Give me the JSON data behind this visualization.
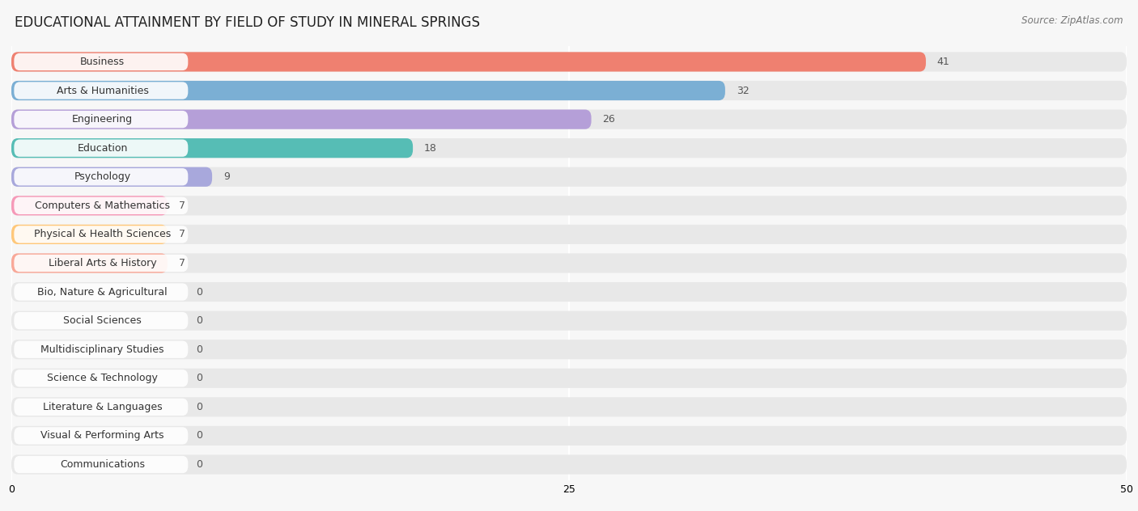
{
  "title": "EDUCATIONAL ATTAINMENT BY FIELD OF STUDY IN MINERAL SPRINGS",
  "source": "Source: ZipAtlas.com",
  "categories": [
    "Business",
    "Arts & Humanities",
    "Engineering",
    "Education",
    "Psychology",
    "Computers & Mathematics",
    "Physical & Health Sciences",
    "Liberal Arts & History",
    "Bio, Nature & Agricultural",
    "Social Sciences",
    "Multidisciplinary Studies",
    "Science & Technology",
    "Literature & Languages",
    "Visual & Performing Arts",
    "Communications"
  ],
  "values": [
    41,
    32,
    26,
    18,
    9,
    7,
    7,
    7,
    0,
    0,
    0,
    0,
    0,
    0,
    0
  ],
  "bar_colors": [
    "#EF8070",
    "#7BAFD4",
    "#B59FD8",
    "#56BDB5",
    "#A8A8DC",
    "#F699B8",
    "#FFC87A",
    "#F9A898",
    "#85BCE8",
    "#C890D8",
    "#6FD4DC",
    "#A8C8F0",
    "#F699B8",
    "#FFC87A",
    "#F9A898"
  ],
  "xlim": [
    0,
    50
  ],
  "xticks": [
    0,
    25,
    50
  ],
  "background_color": "#f7f7f7",
  "bar_bg_color": "#e8e8e8",
  "title_fontsize": 12,
  "label_fontsize": 9,
  "value_fontsize": 9
}
